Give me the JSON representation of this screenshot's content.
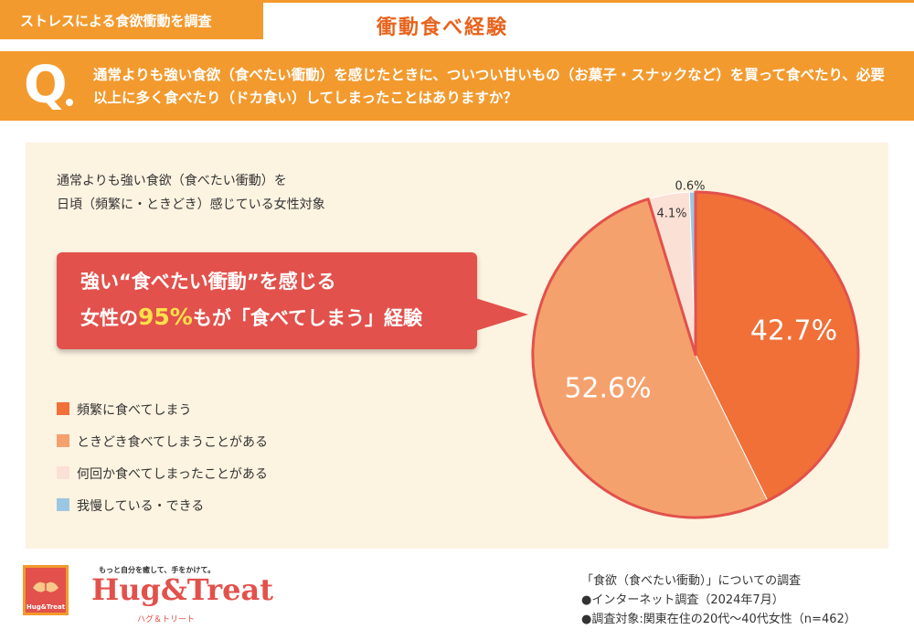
{
  "header": {
    "tag": "ストレスによる食欲衝動を調査",
    "title": "衝動食べ経験"
  },
  "question": {
    "mark": "Q",
    "text": "通常よりも強い食欲（食べたい衝動）を感じたときに、ついつい甘いもの（お菓子・スナックなど）を買って食べたり、必要以上に多く食べたり（ドカ食い）してしまったことはありますか？"
  },
  "subject": {
    "line1": "通常よりも強い食欲（食べたい衝動）を",
    "line2": "日頃（頻繁に・ときどき）感じている女性対象"
  },
  "callout": {
    "line1": "強い“食べたい衝動”を感じる",
    "line2_pre": "女性の",
    "line2_highlight": "95%",
    "line2_post": "もが「食べてしまう」経験"
  },
  "chart_data": {
    "type": "pie",
    "start": "12 o'clock, clockwise",
    "slices": [
      {
        "label": "頻繁に食べてしまう",
        "value": 42.7,
        "display": "42.7%",
        "color": "#f07038"
      },
      {
        "label": "ときどき食べてしまうことがある",
        "value": 52.6,
        "display": "52.6%",
        "color": "#f5a16d"
      },
      {
        "label": "何回か食べてしまったことがある",
        "value": 4.1,
        "display": "4.1%",
        "color": "#fbe0d5"
      },
      {
        "label": "我慢している・できる",
        "value": 0.6,
        "display": "0.6%",
        "color": "#9cc7e2"
      }
    ],
    "highlight_color": "#e2514b"
  },
  "brand": {
    "tagline": "もっと自分を癒して、手をかけて。",
    "name": "Hug&Treat",
    "kana": "ハグ＆トリート",
    "logo_small": "Hug&Treat"
  },
  "notes": {
    "title": "「食欲（食べたい衝動）」についての調査",
    "line1": "●インターネット調査（2024年7月）",
    "line2": "●調査対象:関東在住の20代〜40代女性（n=462）"
  },
  "colors": {
    "orange": "#f39a2e",
    "title_orange": "#e8631c",
    "panel_bg": "#fdf3e1",
    "callout_red": "#e2514b"
  }
}
